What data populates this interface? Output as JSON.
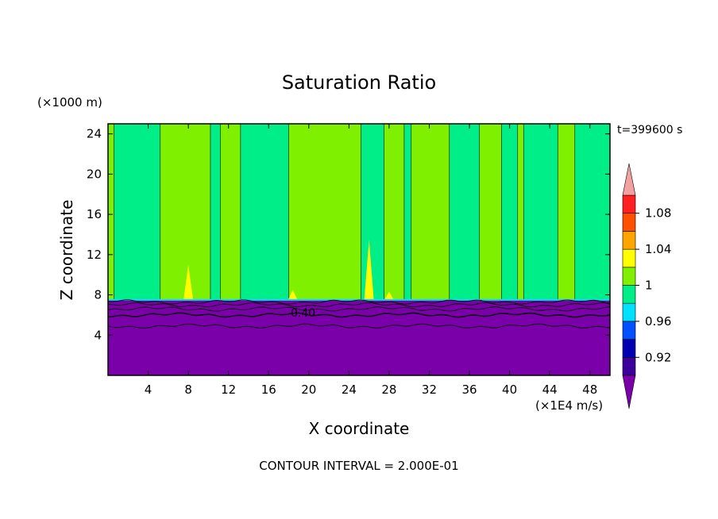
{
  "chart_data": {
    "type": "contour",
    "title": "Saturation Ratio",
    "xlabel": "X coordinate",
    "ylabel": "Z coordinate",
    "x_unit": "(×1E4 m/s)",
    "y_unit": "(×1000 m)",
    "time_label": "t=399600 s",
    "footer": "CONTOUR INTERVAL = 2.000E-01",
    "contour_label": "0.40",
    "xlim": [
      0,
      50
    ],
    "ylim": [
      0,
      25
    ],
    "x_ticks": [
      4,
      8,
      12,
      16,
      20,
      24,
      28,
      32,
      36,
      40,
      44,
      48
    ],
    "y_ticks": [
      4,
      8,
      12,
      16,
      20,
      24
    ],
    "grid": false,
    "colorbar": {
      "levels": [
        0.9,
        0.92,
        0.94,
        0.96,
        0.98,
        1.0,
        1.02,
        1.04,
        1.06,
        1.08,
        1.1
      ],
      "tick_labels": [
        {
          "value": 0.92,
          "label": "0.92"
        },
        {
          "value": 0.96,
          "label": "0.96"
        },
        {
          "value": 1.0,
          "label": "1"
        },
        {
          "value": 1.04,
          "label": "1.04"
        },
        {
          "value": 1.08,
          "label": "1.08"
        }
      ],
      "colors": [
        "#3a0099",
        "#0000b0",
        "#0050ff",
        "#00e0ff",
        "#00ee88",
        "#7ff000",
        "#ffff00",
        "#ffa500",
        "#ff5000",
        "#ff2020"
      ],
      "under_color": "#7a00aa",
      "over_color": "#f4a0a0"
    },
    "regions": {
      "saturated_color": "#7ff000",
      "subsaturated_color": "#00ee88",
      "dry_layer_color": "#7a00aa",
      "interface_height": 7.5,
      "lower_contours_z": [
        4.9,
        6.0,
        6.6,
        7.0,
        7.3
      ],
      "saturated_columns_x": [
        [
          0,
          0.6
        ],
        [
          5.2,
          10.2
        ],
        [
          11.2,
          13.2
        ],
        [
          18.0,
          25.2
        ],
        [
          27.5,
          29.5
        ],
        [
          30.2,
          34.0
        ],
        [
          37.0,
          39.2
        ],
        [
          40.8,
          41.4
        ],
        [
          44.8,
          46.5
        ]
      ],
      "peaks": [
        [
          8.0,
          11.0
        ],
        [
          18.4,
          8.5
        ],
        [
          26.0,
          13.5
        ],
        [
          28.0,
          8.3
        ]
      ]
    }
  }
}
